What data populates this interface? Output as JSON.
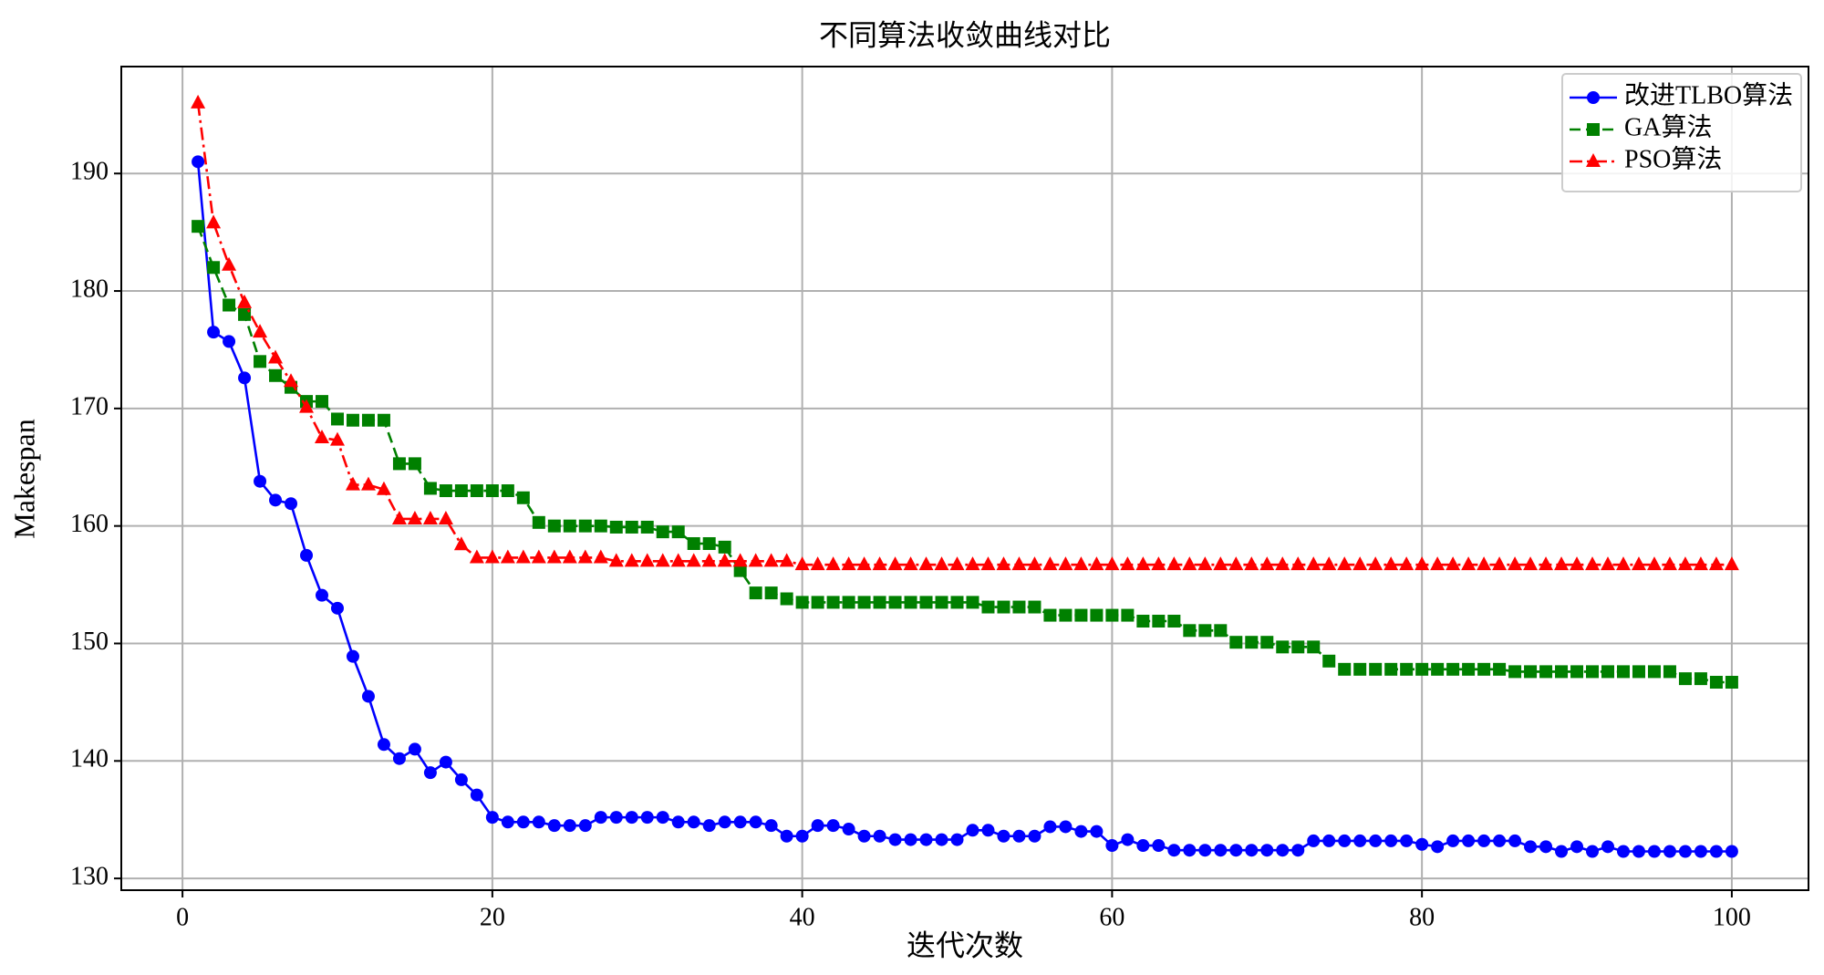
{
  "chart_data": {
    "type": "line",
    "title": "不同算法收敛曲线对比",
    "x_label": "迭代次数",
    "y_label": "Makespan",
    "x": [
      1,
      2,
      3,
      4,
      5,
      6,
      7,
      8,
      9,
      10,
      11,
      12,
      13,
      14,
      15,
      16,
      17,
      18,
      19,
      20,
      21,
      22,
      23,
      24,
      25,
      26,
      27,
      28,
      29,
      30,
      31,
      32,
      33,
      34,
      35,
      36,
      37,
      38,
      39,
      40,
      41,
      42,
      43,
      44,
      45,
      46,
      47,
      48,
      49,
      50,
      51,
      52,
      53,
      54,
      55,
      56,
      57,
      58,
      59,
      60,
      61,
      62,
      63,
      64,
      65,
      66,
      67,
      68,
      69,
      70,
      71,
      72,
      73,
      74,
      75,
      76,
      77,
      78,
      79,
      80,
      81,
      82,
      83,
      84,
      85,
      86,
      87,
      88,
      89,
      90,
      91,
      92,
      93,
      94,
      95,
      96,
      97,
      98,
      99,
      100
    ],
    "series": [
      {
        "name": "改进TLBO算法",
        "color": "#0000ff",
        "marker": "circle",
        "linestyle": "solid",
        "values": [
          191,
          176.5,
          175.7,
          172.6,
          163.8,
          162.2,
          161.9,
          157.5,
          154.1,
          153,
          148.9,
          145.5,
          141.4,
          140.2,
          141,
          139,
          139.9,
          138.4,
          137.1,
          135.2,
          134.8,
          134.8,
          134.8,
          134.5,
          134.5,
          134.5,
          135.2,
          135.2,
          135.2,
          135.2,
          135.2,
          134.8,
          134.8,
          134.5,
          134.8,
          134.8,
          134.8,
          134.5,
          133.6,
          133.6,
          134.5,
          134.5,
          134.2,
          133.6,
          133.6,
          133.3,
          133.3,
          133.3,
          133.3,
          133.3,
          134.1,
          134.1,
          133.6,
          133.6,
          133.6,
          134.4,
          134.4,
          134,
          134,
          132.8,
          133.3,
          132.8,
          132.8,
          132.4,
          132.4,
          132.4,
          132.4,
          132.4,
          132.4,
          132.4,
          132.4,
          132.4,
          133.2,
          133.2,
          133.2,
          133.2,
          133.2,
          133.2,
          133.2,
          132.9,
          132.7,
          133.2,
          133.2,
          133.2,
          133.2,
          133.2,
          132.7,
          132.7,
          132.3,
          132.7,
          132.3,
          132.7,
          132.3,
          132.3,
          132.3,
          132.3,
          132.3,
          132.3,
          132.3,
          132.3
        ]
      },
      {
        "name": "GA算法",
        "color": "#008000",
        "marker": "square",
        "linestyle": "dashed",
        "values": [
          185.5,
          182,
          178.8,
          178,
          174,
          172.8,
          171.8,
          170.6,
          170.6,
          169.1,
          169,
          169,
          169,
          165.3,
          165.3,
          163.2,
          163,
          163,
          163,
          163,
          163,
          162.4,
          160.3,
          160,
          160,
          160,
          160,
          159.9,
          159.9,
          159.9,
          159.5,
          159.5,
          158.5,
          158.5,
          158.2,
          156.2,
          154.3,
          154.3,
          153.8,
          153.5,
          153.5,
          153.5,
          153.5,
          153.5,
          153.5,
          153.5,
          153.5,
          153.5,
          153.5,
          153.5,
          153.5,
          153.1,
          153.1,
          153.1,
          153.1,
          152.4,
          152.4,
          152.4,
          152.4,
          152.4,
          152.4,
          151.9,
          151.9,
          151.9,
          151.1,
          151.1,
          151.1,
          150.1,
          150.1,
          150.1,
          149.7,
          149.7,
          149.7,
          148.5,
          147.8,
          147.8,
          147.8,
          147.8,
          147.8,
          147.8,
          147.8,
          147.8,
          147.8,
          147.8,
          147.8,
          147.6,
          147.6,
          147.6,
          147.6,
          147.6,
          147.6,
          147.6,
          147.6,
          147.6,
          147.6,
          147.6,
          147,
          147,
          146.7,
          146.7
        ]
      },
      {
        "name": "PSO算法",
        "color": "#ff0000",
        "marker": "triangle",
        "linestyle": "dashdot",
        "values": [
          196,
          185.8,
          182.2,
          179,
          176.5,
          174.3,
          172.3,
          170.1,
          167.5,
          167.3,
          163.5,
          163.5,
          163.1,
          160.6,
          160.6,
          160.6,
          160.6,
          158.4,
          157.3,
          157.3,
          157.3,
          157.3,
          157.3,
          157.3,
          157.3,
          157.3,
          157.3,
          157,
          157,
          157,
          157,
          157,
          157,
          157,
          157,
          157,
          157,
          157,
          157,
          156.7,
          156.7,
          156.7,
          156.7,
          156.7,
          156.7,
          156.7,
          156.7,
          156.7,
          156.7,
          156.7,
          156.7,
          156.7,
          156.7,
          156.7,
          156.7,
          156.7,
          156.7,
          156.7,
          156.7,
          156.7,
          156.7,
          156.7,
          156.7,
          156.7,
          156.7,
          156.7,
          156.7,
          156.7,
          156.7,
          156.7,
          156.7,
          156.7,
          156.7,
          156.7,
          156.7,
          156.7,
          156.7,
          156.7,
          156.7,
          156.7,
          156.7,
          156.7,
          156.7,
          156.7,
          156.7,
          156.7,
          156.7,
          156.7,
          156.7,
          156.7,
          156.7,
          156.7,
          156.7,
          156.7,
          156.7,
          156.7,
          156.7,
          156.7,
          156.7,
          156.7
        ]
      }
    ],
    "xlim": [
      -3.95,
      104.95
    ],
    "ylim": [
      129,
      199.1
    ],
    "xticks": [
      0,
      20,
      40,
      60,
      80,
      100
    ],
    "yticks": [
      130,
      140,
      150,
      160,
      170,
      180,
      190
    ],
    "grid": true,
    "legend": "upper right"
  }
}
